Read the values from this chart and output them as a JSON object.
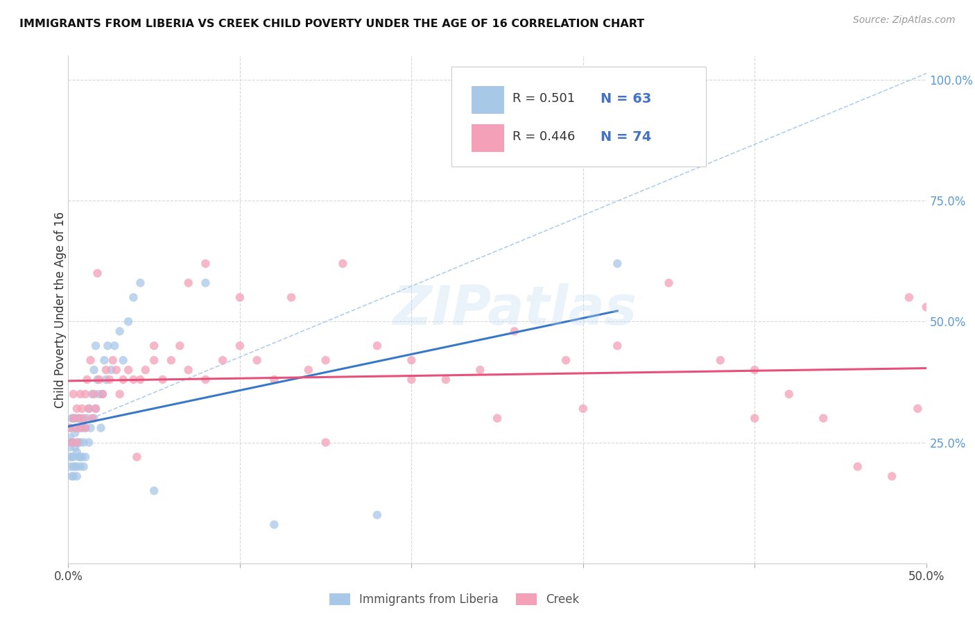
{
  "title": "IMMIGRANTS FROM LIBERIA VS CREEK CHILD POVERTY UNDER THE AGE OF 16 CORRELATION CHART",
  "source": "Source: ZipAtlas.com",
  "ylabel": "Child Poverty Under the Age of 16",
  "xlim": [
    0.0,
    0.5
  ],
  "ylim": [
    0.0,
    1.05
  ],
  "x_ticks": [
    0.0,
    0.1,
    0.2,
    0.3,
    0.4,
    0.5
  ],
  "x_tick_labels": [
    "0.0%",
    "",
    "",
    "",
    "",
    "50.0%"
  ],
  "y_ticks_right": [
    0.25,
    0.5,
    0.75,
    1.0
  ],
  "y_tick_labels_right": [
    "25.0%",
    "50.0%",
    "75.0%",
    "100.0%"
  ],
  "legend_R1": "0.501",
  "legend_N1": "63",
  "legend_R2": "0.446",
  "legend_N2": "74",
  "color_blue": "#a8c8e8",
  "color_pink": "#f4a0b8",
  "color_blue_line": "#3878c8",
  "color_pink_line": "#e8507a",
  "color_diagonal": "#aac8e8",
  "watermark_text": "ZIPatlas",
  "liberia_x": [
    0.001,
    0.001,
    0.001,
    0.001,
    0.001,
    0.002,
    0.002,
    0.002,
    0.002,
    0.003,
    0.003,
    0.003,
    0.003,
    0.003,
    0.004,
    0.004,
    0.004,
    0.004,
    0.005,
    0.005,
    0.005,
    0.005,
    0.006,
    0.006,
    0.006,
    0.007,
    0.007,
    0.007,
    0.007,
    0.008,
    0.008,
    0.009,
    0.009,
    0.01,
    0.01,
    0.011,
    0.012,
    0.012,
    0.013,
    0.014,
    0.015,
    0.015,
    0.016,
    0.016,
    0.017,
    0.018,
    0.019,
    0.02,
    0.021,
    0.022,
    0.023,
    0.025,
    0.027,
    0.03,
    0.032,
    0.035,
    0.038,
    0.042,
    0.05,
    0.08,
    0.12,
    0.18,
    0.32
  ],
  "liberia_y": [
    0.2,
    0.22,
    0.24,
    0.26,
    0.28,
    0.18,
    0.22,
    0.25,
    0.3,
    0.18,
    0.2,
    0.22,
    0.25,
    0.3,
    0.2,
    0.24,
    0.27,
    0.3,
    0.18,
    0.2,
    0.23,
    0.28,
    0.22,
    0.25,
    0.3,
    0.2,
    0.22,
    0.25,
    0.3,
    0.22,
    0.28,
    0.2,
    0.25,
    0.22,
    0.28,
    0.3,
    0.25,
    0.32,
    0.28,
    0.35,
    0.3,
    0.4,
    0.32,
    0.45,
    0.38,
    0.35,
    0.28,
    0.35,
    0.42,
    0.38,
    0.45,
    0.4,
    0.45,
    0.48,
    0.42,
    0.5,
    0.55,
    0.58,
    0.15,
    0.58,
    0.08,
    0.1,
    0.62
  ],
  "creek_x": [
    0.001,
    0.002,
    0.003,
    0.003,
    0.004,
    0.005,
    0.005,
    0.006,
    0.007,
    0.007,
    0.008,
    0.009,
    0.01,
    0.01,
    0.011,
    0.012,
    0.013,
    0.014,
    0.015,
    0.016,
    0.017,
    0.018,
    0.02,
    0.022,
    0.024,
    0.026,
    0.028,
    0.03,
    0.032,
    0.035,
    0.038,
    0.04,
    0.042,
    0.045,
    0.05,
    0.055,
    0.06,
    0.065,
    0.07,
    0.08,
    0.09,
    0.1,
    0.11,
    0.12,
    0.14,
    0.15,
    0.16,
    0.18,
    0.2,
    0.22,
    0.24,
    0.26,
    0.29,
    0.32,
    0.35,
    0.38,
    0.4,
    0.42,
    0.44,
    0.46,
    0.48,
    0.49,
    0.495,
    0.5,
    0.05,
    0.07,
    0.08,
    0.1,
    0.13,
    0.15,
    0.2,
    0.25,
    0.3,
    0.4
  ],
  "creek_y": [
    0.28,
    0.25,
    0.3,
    0.35,
    0.28,
    0.25,
    0.32,
    0.3,
    0.28,
    0.35,
    0.32,
    0.3,
    0.28,
    0.35,
    0.38,
    0.32,
    0.42,
    0.3,
    0.35,
    0.32,
    0.6,
    0.38,
    0.35,
    0.4,
    0.38,
    0.42,
    0.4,
    0.35,
    0.38,
    0.4,
    0.38,
    0.22,
    0.38,
    0.4,
    0.42,
    0.38,
    0.42,
    0.45,
    0.4,
    0.38,
    0.42,
    0.45,
    0.42,
    0.38,
    0.4,
    0.42,
    0.62,
    0.45,
    0.42,
    0.38,
    0.4,
    0.48,
    0.42,
    0.45,
    0.58,
    0.42,
    0.3,
    0.35,
    0.3,
    0.2,
    0.18,
    0.55,
    0.32,
    0.53,
    0.45,
    0.58,
    0.62,
    0.55,
    0.55,
    0.25,
    0.38,
    0.3,
    0.32,
    0.4
  ]
}
